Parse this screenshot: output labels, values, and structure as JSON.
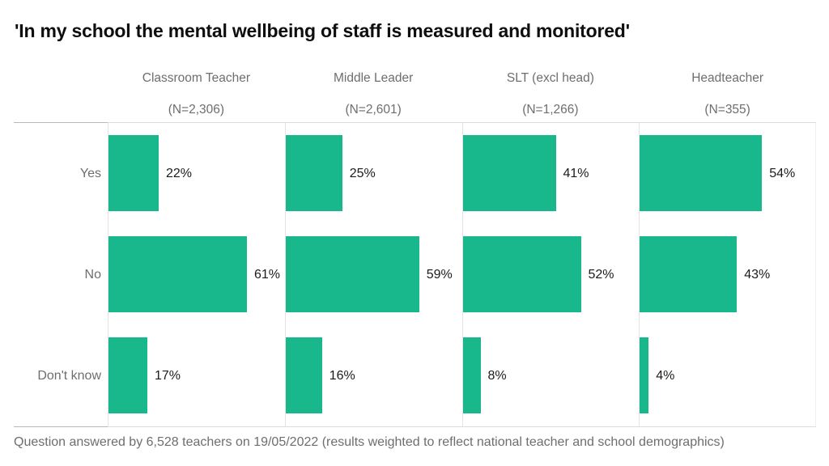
{
  "title": "'In my school the mental wellbeing of staff is measured and monitored'",
  "footnote": "Question answered by 6,528 teachers on 19/05/2022 (results weighted to reflect national teacher and school demographics)",
  "colors": {
    "bar": "#18b78c",
    "grid": "#e4e4e4",
    "axis": "#dcdcdc",
    "muted_text": "#6e6e6e",
    "value_text": "#1b1b1b",
    "title_text": "#0e0e0e"
  },
  "chart_data": {
    "type": "bar",
    "orientation": "horizontal",
    "title": "'In my school the mental wellbeing of staff is measured and monitored'",
    "categories": [
      "Yes",
      "No",
      "Don't know"
    ],
    "groups": [
      {
        "label": "Classroom Teacher",
        "n_label": "(N=2,306)"
      },
      {
        "label": "Middle Leader",
        "n_label": "(N=2,601)"
      },
      {
        "label": "SLT (excl head)",
        "n_label": "(N=1,266)"
      },
      {
        "label": "Headteacher",
        "n_label": "(N=355)"
      }
    ],
    "series": [
      {
        "name": "Classroom Teacher",
        "values": [
          22,
          61,
          17
        ]
      },
      {
        "name": "Middle Leader",
        "values": [
          25,
          59,
          16
        ]
      },
      {
        "name": "SLT (excl head)",
        "values": [
          41,
          52,
          8
        ]
      },
      {
        "name": "Headteacher",
        "values": [
          54,
          43,
          4
        ]
      }
    ],
    "value_suffix": "%",
    "xlim": [
      0,
      78
    ],
    "grid": "vertical panel baselines, top and bottom axis lines",
    "legend": "none"
  }
}
